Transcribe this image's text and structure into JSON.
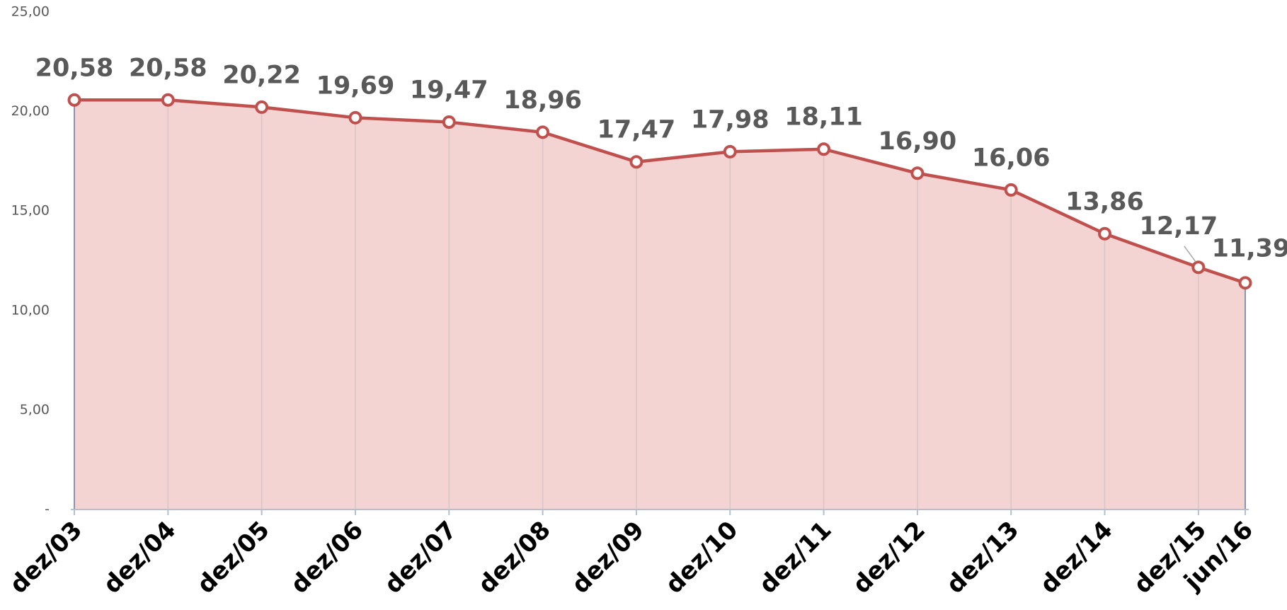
{
  "chart_data": {
    "type": "area",
    "categories": [
      "dez/03",
      "dez/04",
      "dez/05",
      "dez/06",
      "dez/07",
      "dez/08",
      "dez/09",
      "dez/10",
      "dez/11",
      "dez/12",
      "dez/13",
      "dez/14",
      "dez/15",
      "jun/16"
    ],
    "series": [
      {
        "color": "#c0504d",
        "values": [
          20.58,
          20.58,
          20.22,
          19.69,
          19.47,
          18.96,
          17.47,
          17.98,
          18.11,
          16.9,
          16.06,
          13.86,
          12.17,
          11.39
        ],
        "value_labels": [
          "20,58",
          "20,58",
          "20,22",
          "19,69",
          "19,47",
          "18,96",
          "17,47",
          "17,98",
          "18,11",
          "16,90",
          "16,06",
          "13,86",
          "12,17",
          "11,39"
        ]
      }
    ],
    "ylim": [
      0,
      25
    ],
    "yticks": [
      {
        "value": 0,
        "label": "-"
      },
      {
        "value": 5,
        "label": "5,00"
      },
      {
        "value": 10,
        "label": "10,00"
      },
      {
        "value": 15,
        "label": "15,00"
      },
      {
        "value": 20,
        "label": "20,00"
      },
      {
        "value": 25,
        "label": "25,00"
      }
    ],
    "grid": true
  }
}
